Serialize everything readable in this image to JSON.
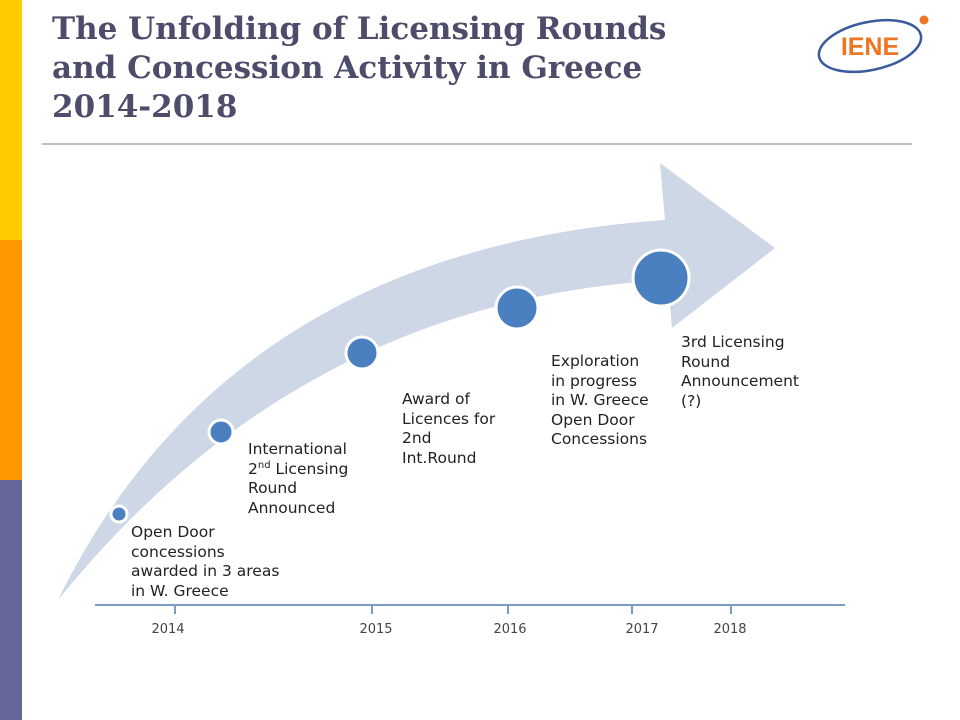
{
  "slide": {
    "title_lines": [
      "The Unfolding of Licensing Rounds",
      "and Concession Activity in Greece",
      "2014-2018"
    ],
    "logo_text": "IENE"
  },
  "colors": {
    "sidebar": [
      "#ffcc00",
      "#ff9900",
      "#66669a"
    ],
    "arrow": "#cdd7e5",
    "node": "#4a80c0",
    "node_ring": "#ffffff",
    "axis": "#7a9cc6",
    "title": "#4d4d6b",
    "logo_text": "#ee7623",
    "logo_ring": "#3a5a9c"
  },
  "timeline": {
    "years": [
      "2014",
      "2015",
      "2016",
      "2017",
      "2018"
    ],
    "events": [
      {
        "id": "open-door",
        "lines": [
          "Open Door",
          "concessions",
          "awarded in 3 areas",
          "in W. Greece"
        ]
      },
      {
        "id": "international-2nd-round",
        "line1": "International",
        "line2_sup": "nd",
        "line2_num": "2",
        "line2_rest": " Licensing",
        "line3": "Round",
        "line4": "Announced"
      },
      {
        "id": "award-of-licences",
        "lines": [
          "Award of",
          "Licences for",
          "2nd",
          "Int.Round"
        ]
      },
      {
        "id": "exploration",
        "lines": [
          "Exploration",
          "in progress",
          "in W. Greece",
          "Open Door",
          "Concessions"
        ]
      },
      {
        "id": "3rd-round",
        "lines": [
          "3rd Licensing",
          "Round",
          "Announcement",
          "(?)"
        ]
      }
    ]
  }
}
